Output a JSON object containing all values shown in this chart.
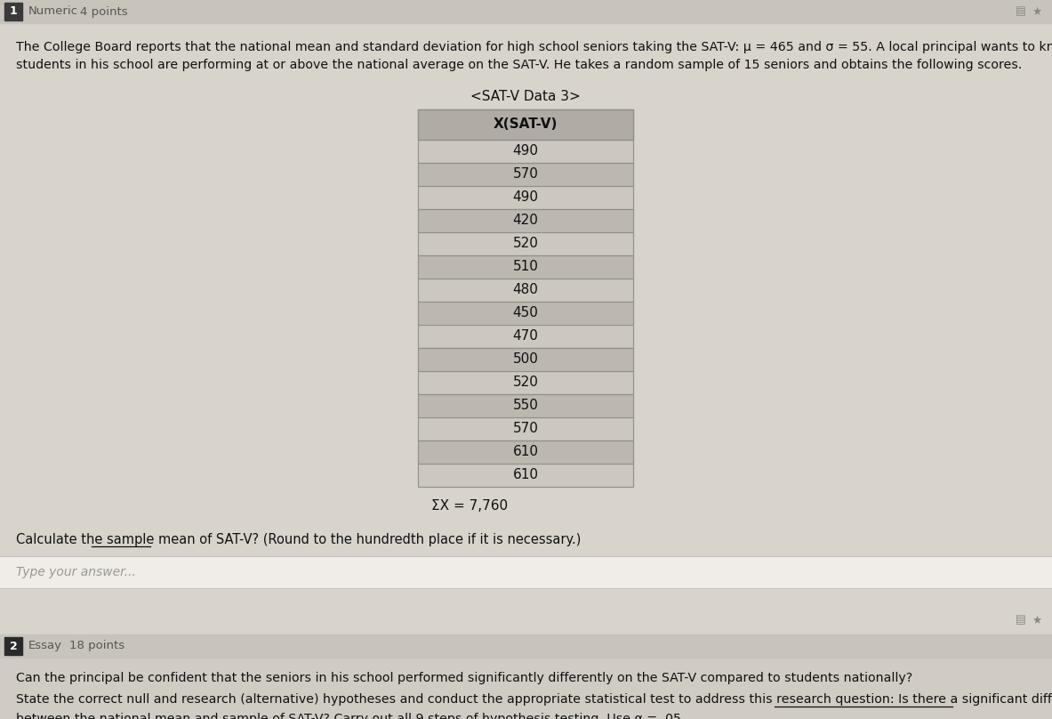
{
  "question1_label": "1",
  "question1_type": "Numeric",
  "question1_points": "4 points",
  "question2_label": "2",
  "question2_type": "Essay",
  "question2_points": "18 points",
  "table_title": "<SAT-V Data 3>",
  "table_header": "X(SAT-V)",
  "table_values": [
    490,
    570,
    490,
    420,
    520,
    510,
    480,
    450,
    470,
    500,
    520,
    550,
    570,
    610,
    610
  ],
  "sum_label": "ΣX = 7,760",
  "answer_placeholder": "Type your answer...",
  "question2_text": "Can the principal be confident that the seniors in his school performed significantly differently on the SAT-V compared to students nationally?",
  "background_color": "#d8d4cc",
  "top_bar_color": "#c8c4bc",
  "label1_bg": "#3a3a3a",
  "label2_bg": "#2a2a2a",
  "table_header_bg": "#b0aca4",
  "table_row_even": "#ccc8c0",
  "table_row_odd": "#bcb8b0",
  "table_border": "#909088",
  "answer_box_bg": "#f0ede8",
  "answer_box_border": "#c0bdb5",
  "q2_bar_bg": "#c8c4bc",
  "q2_section_bg": "#d0ccc4",
  "text_color": "#111111",
  "light_text": "#555555",
  "icon_color": "#888880",
  "para_line1": "The College Board reports that the national mean and standard deviation for high school seniors taking the SAT-V: μ = 465 and σ = 55. A local principal wants to know if the",
  "para_line2": "students in his school are performing at or above the national average on the SAT-V. He takes a random sample of 15 seniors and obtains the following scores.",
  "q1_text_pre": "Calculate the ",
  "q1_text_ul": "sample mean",
  "q1_text_post": " of SAT-V? (Round to the hundredth place if it is necessary.)",
  "detail_pre": "State the correct null and research (alternative) hypotheses and conduct the appropriate statistical test to address this research question: ",
  "detail_ul1": "Is there a significant difference",
  "detail_line2_ul": "between the national mean and sample of SAT-V? Carry out all 9 steps of hypothesis testing.",
  "detail_line2_post": " Use α = .05"
}
